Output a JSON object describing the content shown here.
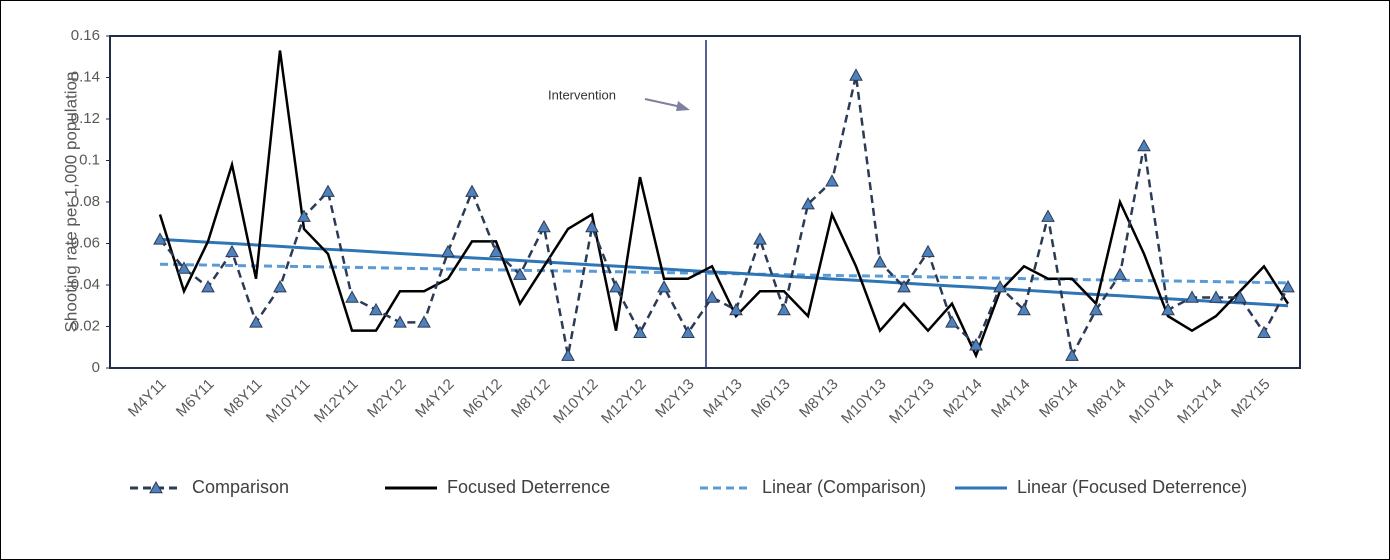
{
  "chart_data": {
    "type": "line",
    "y_label": "Shooting rate per 1,000 population",
    "annotation": "Intervention",
    "categories": [
      "M4Y11",
      null,
      "M6Y11",
      null,
      "M8Y11",
      null,
      "M10Y11",
      null,
      "M12Y11",
      null,
      "M2Y12",
      null,
      "M4Y12",
      null,
      "M6Y12",
      null,
      "M8Y12",
      null,
      "M10Y12",
      null,
      "M12Y12",
      null,
      "M2Y13",
      null,
      "M4Y13",
      null,
      "M6Y13",
      null,
      "M8Y13",
      null,
      "M10Y13",
      null,
      "M12Y13",
      null,
      "M2Y14",
      null,
      "M4Y14",
      null,
      "M6Y14",
      null,
      "M8Y14",
      null,
      "M10Y14",
      null,
      "M12Y14",
      null,
      "M2Y15",
      null
    ],
    "ylim": [
      0,
      0.16
    ],
    "yticks": [
      0,
      0.02,
      0.04,
      0.06,
      0.08,
      0.1,
      0.12,
      0.14,
      0.16
    ],
    "legend": "bottom",
    "series": [
      {
        "name": "Comparison",
        "color": "#2b3a55",
        "style": "dashed",
        "marker": "triangle",
        "values": [
          0.062,
          0.048,
          0.039,
          0.056,
          0.022,
          0.039,
          0.073,
          0.085,
          0.034,
          0.028,
          0.022,
          0.022,
          0.056,
          0.085,
          0.056,
          0.045,
          0.068,
          0.006,
          0.068,
          0.039,
          0.017,
          0.039,
          0.017,
          0.034,
          0.028,
          0.062,
          0.028,
          0.079,
          0.09,
          0.141,
          0.051,
          0.039,
          0.056,
          0.022,
          0.011,
          0.039,
          0.028,
          0.073,
          0.006,
          0.028,
          0.045,
          0.107,
          0.028,
          0.034,
          0.034,
          0.034,
          0.017,
          0.039
        ]
      },
      {
        "name": "Focused Deterrence",
        "color": "#000000",
        "style": "solid",
        "values": [
          0.074,
          0.037,
          0.061,
          0.098,
          0.043,
          0.153,
          0.067,
          0.055,
          0.018,
          0.018,
          0.037,
          0.037,
          0.043,
          0.061,
          0.061,
          0.031,
          0.049,
          0.067,
          0.074,
          0.018,
          0.092,
          0.043,
          0.043,
          0.049,
          0.025,
          0.037,
          0.037,
          0.025,
          0.074,
          0.049,
          0.018,
          0.031,
          0.018,
          0.031,
          0.006,
          0.037,
          0.049,
          0.043,
          0.043,
          0.031,
          0.08,
          0.055,
          0.025,
          0.018,
          0.025,
          0.037,
          0.049,
          0.031
        ]
      },
      {
        "name": "Linear (Comparison)",
        "color": "#5b9bd5",
        "style": "dashed",
        "values": [
          0.05,
          0.0498,
          0.0496,
          0.0494,
          0.0492,
          0.049,
          0.0489,
          0.0487,
          0.0485,
          0.0483,
          0.0481,
          0.0479,
          0.0477,
          0.0475,
          0.0473,
          0.0471,
          0.0469,
          0.0467,
          0.0466,
          0.0464,
          0.0462,
          0.046,
          0.0458,
          0.0456,
          0.0454,
          0.0452,
          0.045,
          0.0448,
          0.0446,
          0.0444,
          0.0443,
          0.0441,
          0.0439,
          0.0437,
          0.0435,
          0.0433,
          0.0431,
          0.0429,
          0.0427,
          0.0425,
          0.0423,
          0.0421,
          0.042,
          0.0418,
          0.0416,
          0.0414,
          0.0412,
          0.041
        ]
      },
      {
        "name": "Linear (Focused Deterrence)",
        "color": "#2e75b6",
        "style": "solid",
        "values": [
          0.062,
          0.0613,
          0.0606,
          0.06,
          0.0593,
          0.0586,
          0.0579,
          0.0572,
          0.0566,
          0.0559,
          0.0552,
          0.0545,
          0.0538,
          0.0531,
          0.0525,
          0.0518,
          0.0511,
          0.0504,
          0.0497,
          0.0491,
          0.0484,
          0.0477,
          0.047,
          0.0463,
          0.0457,
          0.045,
          0.0443,
          0.0436,
          0.0429,
          0.0423,
          0.0416,
          0.0409,
          0.0402,
          0.0395,
          0.0389,
          0.0382,
          0.0375,
          0.0368,
          0.0361,
          0.0354,
          0.0348,
          0.0341,
          0.0334,
          0.0327,
          0.032,
          0.0314,
          0.0307,
          0.03
        ]
      }
    ]
  }
}
